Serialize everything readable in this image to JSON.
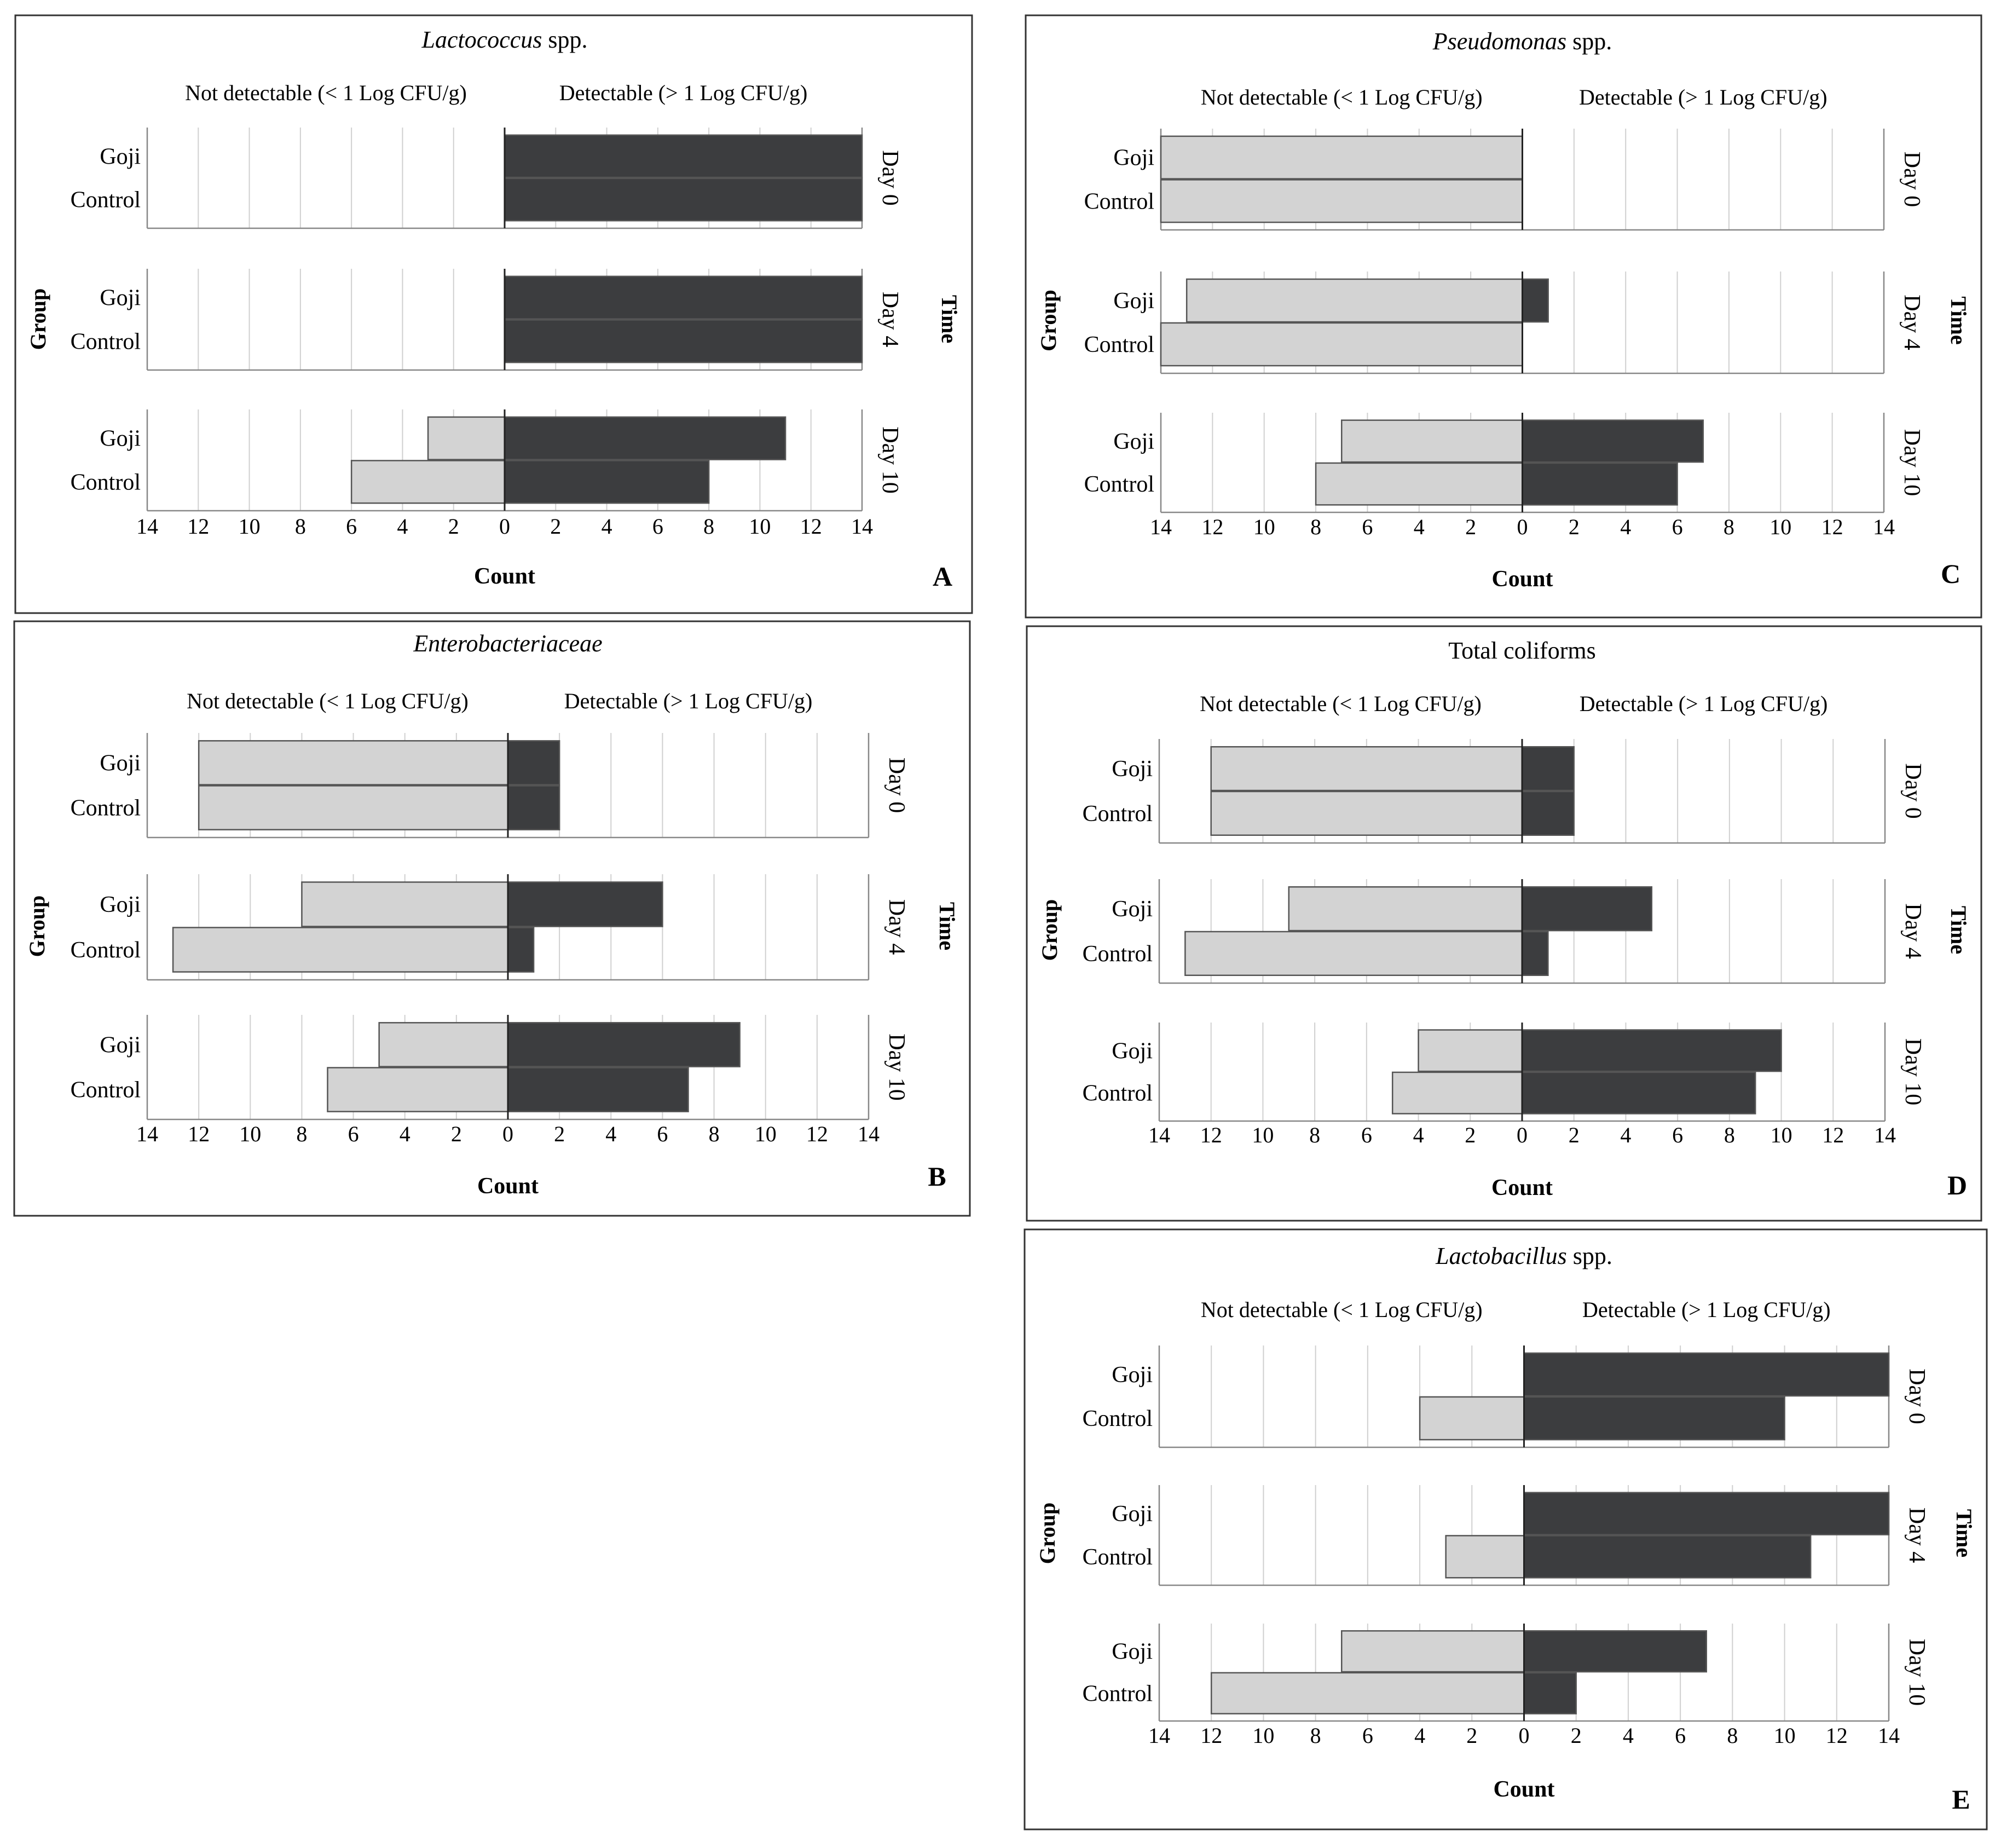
{
  "figure": {
    "common": {
      "not_detectable_label": "Not detectable (< 1 Log CFU/g)",
      "detectable_label": "Detectable (> 1 Log CFU/g)",
      "xlabel": "Count",
      "ylabel": "Group",
      "facet_label": "Time"
    }
  },
  "chart_data": [
    {
      "id": "A",
      "type": "bar",
      "orientation": "horizontal diverging",
      "title": "Lactococcus",
      "title_italic": true,
      "title_suffix": "spp.",
      "panel_letter": "A",
      "xlabel": "Count",
      "ylabel": "Group",
      "facet_label": "Time",
      "xlim": [
        -14,
        14
      ],
      "ticks": [
        "14",
        "12",
        "10",
        "8",
        "6",
        "4",
        "2",
        "0",
        "2",
        "4",
        "6",
        "8",
        "10",
        "12",
        "14"
      ],
      "groups": [
        "Goji",
        "Control"
      ],
      "facets": [
        {
          "label": "Day 0",
          "rows": [
            {
              "group": "Goji",
              "not_detectable": 0,
              "detectable": 14
            },
            {
              "group": "Control",
              "not_detectable": 0,
              "detectable": 14
            }
          ]
        },
        {
          "label": "Day 4",
          "rows": [
            {
              "group": "Goji",
              "not_detectable": 0,
              "detectable": 14
            },
            {
              "group": "Control",
              "not_detectable": 0,
              "detectable": 14
            }
          ]
        },
        {
          "label": "Day 10",
          "rows": [
            {
              "group": "Goji",
              "not_detectable": 3,
              "detectable": 11
            },
            {
              "group": "Control",
              "not_detectable": 6,
              "detectable": 8
            }
          ]
        }
      ]
    },
    {
      "id": "B",
      "type": "bar",
      "orientation": "horizontal diverging",
      "title": "Enterobacteriaceae",
      "title_italic": true,
      "title_suffix": "",
      "panel_letter": "B",
      "xlabel": "Count",
      "ylabel": "Group",
      "facet_label": "Time",
      "xlim": [
        -14,
        14
      ],
      "ticks": [
        "14",
        "12",
        "10",
        "8",
        "6",
        "4",
        "2",
        "0",
        "2",
        "4",
        "6",
        "8",
        "10",
        "12",
        "14"
      ],
      "groups": [
        "Goji",
        "Control"
      ],
      "facets": [
        {
          "label": "Day 0",
          "rows": [
            {
              "group": "Goji",
              "not_detectable": 12,
              "detectable": 2
            },
            {
              "group": "Control",
              "not_detectable": 12,
              "detectable": 2
            }
          ]
        },
        {
          "label": "Day 4",
          "rows": [
            {
              "group": "Goji",
              "not_detectable": 8,
              "detectable": 6
            },
            {
              "group": "Control",
              "not_detectable": 13,
              "detectable": 1
            }
          ]
        },
        {
          "label": "Day 10",
          "rows": [
            {
              "group": "Goji",
              "not_detectable": 5,
              "detectable": 9
            },
            {
              "group": "Control",
              "not_detectable": 7,
              "detectable": 7
            }
          ]
        }
      ]
    },
    {
      "id": "C",
      "type": "bar",
      "orientation": "horizontal diverging",
      "title": "Pseudomonas",
      "title_italic": true,
      "title_suffix": "spp.",
      "panel_letter": "C",
      "xlabel": "Count",
      "ylabel": "Group",
      "facet_label": "Time",
      "xlim": [
        -14,
        14
      ],
      "ticks": [
        "14",
        "12",
        "10",
        "8",
        "6",
        "4",
        "2",
        "0",
        "2",
        "4",
        "6",
        "8",
        "10",
        "12",
        "14"
      ],
      "groups": [
        "Goji",
        "Control"
      ],
      "facets": [
        {
          "label": "Day 0",
          "rows": [
            {
              "group": "Goji",
              "not_detectable": 14,
              "detectable": 0
            },
            {
              "group": "Control",
              "not_detectable": 14,
              "detectable": 0
            }
          ]
        },
        {
          "label": "Day 4",
          "rows": [
            {
              "group": "Goji",
              "not_detectable": 13,
              "detectable": 1
            },
            {
              "group": "Control",
              "not_detectable": 14,
              "detectable": 0
            }
          ]
        },
        {
          "label": "Day 10",
          "rows": [
            {
              "group": "Goji",
              "not_detectable": 7,
              "detectable": 7
            },
            {
              "group": "Control",
              "not_detectable": 8,
              "detectable": 6
            }
          ]
        }
      ]
    },
    {
      "id": "D",
      "type": "bar",
      "orientation": "horizontal diverging",
      "title": "Total coliforms",
      "title_italic": false,
      "title_suffix": "",
      "panel_letter": "D",
      "xlabel": "Count",
      "ylabel": "Group",
      "facet_label": "Time",
      "xlim": [
        -14,
        14
      ],
      "ticks": [
        "14",
        "12",
        "10",
        "8",
        "6",
        "4",
        "2",
        "0",
        "2",
        "4",
        "6",
        "8",
        "10",
        "12",
        "14"
      ],
      "groups": [
        "Goji",
        "Control"
      ],
      "facets": [
        {
          "label": "Day 0",
          "rows": [
            {
              "group": "Goji",
              "not_detectable": 12,
              "detectable": 2
            },
            {
              "group": "Control",
              "not_detectable": 12,
              "detectable": 2
            }
          ]
        },
        {
          "label": "Day 4",
          "rows": [
            {
              "group": "Goji",
              "not_detectable": 9,
              "detectable": 5
            },
            {
              "group": "Control",
              "not_detectable": 13,
              "detectable": 1
            }
          ]
        },
        {
          "label": "Day 10",
          "rows": [
            {
              "group": "Goji",
              "not_detectable": 4,
              "detectable": 10
            },
            {
              "group": "Control",
              "not_detectable": 5,
              "detectable": 9
            }
          ]
        }
      ]
    },
    {
      "id": "E",
      "type": "bar",
      "orientation": "horizontal diverging",
      "title": "Lactobacillus",
      "title_italic": true,
      "title_suffix": "spp.",
      "panel_letter": "E",
      "xlabel": "Count",
      "ylabel": "Group",
      "facet_label": "Time",
      "xlim": [
        -14,
        14
      ],
      "ticks": [
        "14",
        "12",
        "10",
        "8",
        "6",
        "4",
        "2",
        "0",
        "2",
        "4",
        "6",
        "8",
        "10",
        "12",
        "14"
      ],
      "groups": [
        "Goji",
        "Control"
      ],
      "facets": [
        {
          "label": "Day 0",
          "rows": [
            {
              "group": "Goji",
              "not_detectable": 0,
              "detectable": 14
            },
            {
              "group": "Control",
              "not_detectable": 4,
              "detectable": 10
            }
          ]
        },
        {
          "label": "Day 4",
          "rows": [
            {
              "group": "Goji",
              "not_detectable": 0,
              "detectable": 14
            },
            {
              "group": "Control",
              "not_detectable": 3,
              "detectable": 11
            }
          ]
        },
        {
          "label": "Day 10",
          "rows": [
            {
              "group": "Goji",
              "not_detectable": 7,
              "detectable": 7
            },
            {
              "group": "Control",
              "not_detectable": 12,
              "detectable": 2
            }
          ]
        }
      ]
    }
  ],
  "colors": {
    "not_detectable_fill": "#d3d3d3",
    "detectable_fill": "#3c3d3f",
    "bar_stroke": "#555555",
    "grid": "#d0d0d0",
    "axis": "#888888",
    "frame": "#333333",
    "text": "#000000"
  }
}
